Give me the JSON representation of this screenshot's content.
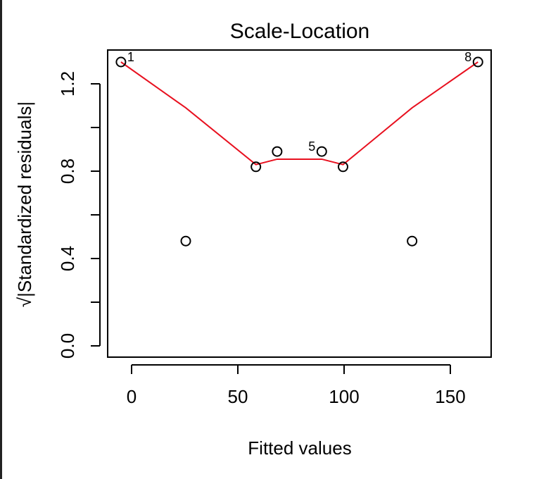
{
  "chart_data": {
    "type": "scatter",
    "title": "Scale-Location",
    "xlabel": "Fitted values",
    "ylabel": "√|Standardized residuals|",
    "xlim": [
      -10,
      170
    ],
    "ylim": [
      0,
      1.4
    ],
    "x_ticks": [
      0,
      50,
      100,
      150
    ],
    "x_tick_labels": [
      "0",
      "50",
      "100",
      "150"
    ],
    "y_ticks": [
      0,
      0.2,
      0.4,
      0.6,
      0.8,
      1.0,
      1.2
    ],
    "y_tick_labels": [
      "0.0",
      "",
      "0.4",
      "",
      "0.8",
      "",
      "1.2"
    ],
    "grid": false,
    "points": [
      {
        "x": -5,
        "y": 1.3,
        "label": "1"
      },
      {
        "x": 25.5,
        "y": 0.48,
        "label": ""
      },
      {
        "x": 58.5,
        "y": 0.82,
        "label": ""
      },
      {
        "x": 68.5,
        "y": 0.89,
        "label": ""
      },
      {
        "x": 89.5,
        "y": 0.89,
        "label": "5"
      },
      {
        "x": 99.5,
        "y": 0.82,
        "label": ""
      },
      {
        "x": 132,
        "y": 0.48,
        "label": ""
      },
      {
        "x": 163,
        "y": 1.3,
        "label": "8"
      }
    ],
    "smoother": {
      "color": "#e8101f",
      "x": [
        -5,
        25.5,
        58.5,
        68.5,
        89.5,
        99.5,
        132,
        163
      ],
      "y": [
        1.3,
        1.09,
        0.83,
        0.855,
        0.855,
        0.83,
        1.09,
        1.3
      ]
    }
  }
}
